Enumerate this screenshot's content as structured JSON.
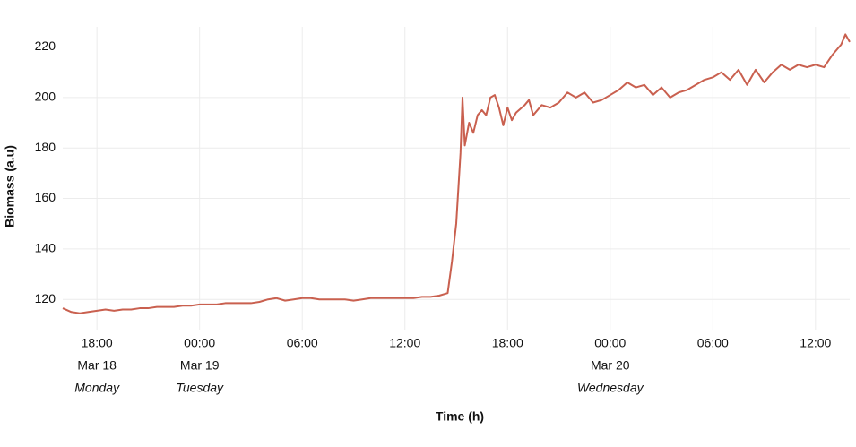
{
  "chart_data": {
    "type": "line",
    "x_label": "Time (h)",
    "y_label": "Biomass (a.u)",
    "xlim": [
      "Mar 18 16:00",
      "Mar 20 14:00"
    ],
    "ylim": [
      108,
      228
    ],
    "yticks": [
      120,
      140,
      160,
      180,
      200,
      220
    ],
    "xticks": [
      {
        "value": "Mar 18 18:00",
        "label": "18:00",
        "date": "Mar 18",
        "weekday": "Monday"
      },
      {
        "value": "Mar 19 00:00",
        "label": "00:00",
        "date": "Mar 19",
        "weekday": "Tuesday"
      },
      {
        "value": "Mar 19 06:00",
        "label": "06:00"
      },
      {
        "value": "Mar 19 12:00",
        "label": "12:00"
      },
      {
        "value": "Mar 19 18:00",
        "label": "18:00"
      },
      {
        "value": "Mar 20 00:00",
        "label": "00:00",
        "date": "Mar 20",
        "weekday": "Wednesday"
      },
      {
        "value": "Mar 20 06:00",
        "label": "06:00"
      },
      {
        "value": "Mar 20 12:00",
        "label": "12:00"
      }
    ],
    "grid": true,
    "x": [
      "Mar 18 16:00",
      "Mar 18 16:30",
      "Mar 18 17:00",
      "Mar 18 17:30",
      "Mar 18 18:00",
      "Mar 18 18:30",
      "Mar 18 19:00",
      "Mar 18 19:30",
      "Mar 18 20:00",
      "Mar 18 20:30",
      "Mar 18 21:00",
      "Mar 18 21:30",
      "Mar 18 22:00",
      "Mar 18 22:30",
      "Mar 18 23:00",
      "Mar 18 23:30",
      "Mar 19 00:00",
      "Mar 19 00:30",
      "Mar 19 01:00",
      "Mar 19 01:30",
      "Mar 19 02:00",
      "Mar 19 02:30",
      "Mar 19 03:00",
      "Mar 19 03:30",
      "Mar 19 04:00",
      "Mar 19 04:30",
      "Mar 19 05:00",
      "Mar 19 05:30",
      "Mar 19 06:00",
      "Mar 19 06:30",
      "Mar 19 07:00",
      "Mar 19 07:30",
      "Mar 19 08:00",
      "Mar 19 08:30",
      "Mar 19 09:00",
      "Mar 19 09:30",
      "Mar 19 10:00",
      "Mar 19 10:30",
      "Mar 19 11:00",
      "Mar 19 11:30",
      "Mar 19 12:00",
      "Mar 19 12:30",
      "Mar 19 13:00",
      "Mar 19 13:30",
      "Mar 19 14:00",
      "Mar 19 14:30",
      "Mar 19 14:45",
      "Mar 19 15:00",
      "Mar 19 15:15",
      "Mar 19 15:22",
      "Mar 19 15:30",
      "Mar 19 15:45",
      "Mar 19 16:00",
      "Mar 19 16:15",
      "Mar 19 16:30",
      "Mar 19 16:45",
      "Mar 19 17:00",
      "Mar 19 17:15",
      "Mar 19 17:30",
      "Mar 19 17:45",
      "Mar 19 18:00",
      "Mar 19 18:15",
      "Mar 19 18:30",
      "Mar 19 19:00",
      "Mar 19 19:15",
      "Mar 19 19:30",
      "Mar 19 20:00",
      "Mar 19 20:30",
      "Mar 19 21:00",
      "Mar 19 21:30",
      "Mar 19 22:00",
      "Mar 19 22:30",
      "Mar 19 23:00",
      "Mar 19 23:30",
      "Mar 20 00:00",
      "Mar 20 00:30",
      "Mar 20 01:00",
      "Mar 20 01:30",
      "Mar 20 02:00",
      "Mar 20 02:30",
      "Mar 20 03:00",
      "Mar 20 03:30",
      "Mar 20 04:00",
      "Mar 20 04:30",
      "Mar 20 05:00",
      "Mar 20 05:30",
      "Mar 20 06:00",
      "Mar 20 06:30",
      "Mar 20 07:00",
      "Mar 20 07:30",
      "Mar 20 08:00",
      "Mar 20 08:30",
      "Mar 20 09:00",
      "Mar 20 09:30",
      "Mar 20 10:00",
      "Mar 20 10:30",
      "Mar 20 11:00",
      "Mar 20 11:30",
      "Mar 20 12:00",
      "Mar 20 12:30",
      "Mar 20 13:00",
      "Mar 20 13:30",
      "Mar 20 13:45",
      "Mar 20 14:00"
    ],
    "series": [
      {
        "color": "#c9604f",
        "values": [
          116.5,
          115,
          114.5,
          115,
          115.5,
          116,
          115.5,
          116,
          116,
          116.5,
          116.5,
          117,
          117,
          117,
          117.5,
          117.5,
          118,
          118,
          118,
          118.5,
          118.5,
          118.5,
          118.5,
          119,
          120,
          120.5,
          119.5,
          120,
          120.5,
          120.5,
          120,
          120,
          120,
          120,
          119.5,
          120,
          120.5,
          120.5,
          120.5,
          120.5,
          120.5,
          120.5,
          121,
          121,
          121.5,
          122.5,
          135,
          150,
          178,
          200,
          181,
          190,
          186,
          193,
          195,
          193,
          200,
          201,
          196,
          189,
          196,
          191,
          194,
          197,
          199,
          193,
          197,
          196,
          198,
          202,
          200,
          202,
          198,
          199,
          201,
          203,
          206,
          204,
          205,
          201,
          204,
          200,
          202,
          203,
          205,
          207,
          208,
          210,
          207,
          211,
          205,
          211,
          206,
          210,
          213,
          211,
          213,
          212,
          213,
          212,
          217,
          221,
          225,
          222
        ]
      }
    ]
  }
}
